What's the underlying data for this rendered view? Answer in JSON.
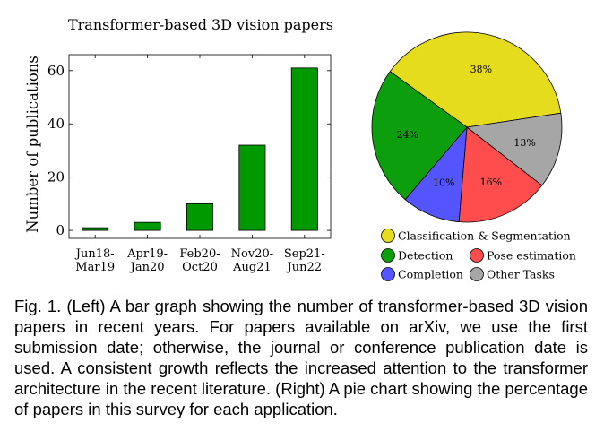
{
  "chart_data": [
    {
      "type": "bar",
      "title": "Transformer-based 3D vision papers",
      "ylabel": "Number of publications",
      "xlabel": "",
      "categories": [
        [
          "Jun18-",
          "Mar19"
        ],
        [
          "Apr19-",
          "Jan20"
        ],
        [
          "Feb20-",
          "Oct20"
        ],
        [
          "Nov20-",
          "Aug21"
        ],
        [
          "Sep21-",
          "Jun22"
        ]
      ],
      "values": [
        1,
        3,
        10,
        32,
        61
      ],
      "ylim": [
        -3,
        66
      ],
      "yticks": [
        0,
        20,
        40,
        60
      ],
      "grid": false,
      "bar_color": "#009900"
    },
    {
      "type": "pie",
      "labels": [
        "Classification & Segmentation",
        "Pose estimation",
        "Detection",
        "Other Tasks",
        "Completion"
      ],
      "slices": [
        {
          "label": "Classification & Segmentation",
          "value": 38,
          "text": "38%",
          "color": "#e6dc1e"
        },
        {
          "label": "Other Tasks",
          "value": 13,
          "text": "13%",
          "color": "#a6a6a6"
        },
        {
          "label": "Pose estimation",
          "value": 16,
          "text": "16%",
          "color": "#ff4c4c"
        },
        {
          "label": "Completion",
          "value": 10,
          "text": "10%",
          "color": "#5555ff"
        },
        {
          "label": "Detection",
          "value": 24,
          "text": "24%",
          "color": "#0d9e0d"
        }
      ],
      "legend_placement": "bottom"
    }
  ],
  "caption": "Fig. 1. (Left) A bar graph showing the number of transformer-based 3D vision papers in recent years. For papers available on arXiv, we use the first submission date; otherwise, the journal or conference publication date is used. A consistent growth reflects the increased attention to the transformer architecture in the recent literature. (Right) A pie chart showing the percentage of papers in this survey for each application."
}
